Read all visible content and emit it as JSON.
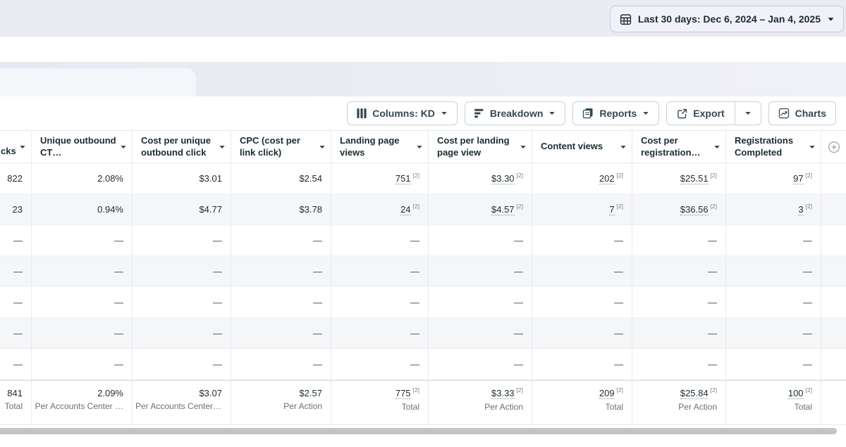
{
  "date_picker": {
    "label": "Last 30 days: Dec 6, 2024 – Jan 4, 2025"
  },
  "toolbar": {
    "columns": "Columns: KD",
    "breakdown": "Breakdown",
    "reports": "Reports",
    "export": "Export",
    "charts": "Charts"
  },
  "table": {
    "columns": [
      {
        "label": "cks",
        "partial": true
      },
      {
        "label": "Unique outbound CT…"
      },
      {
        "label": "Cost per unique outbound click"
      },
      {
        "label": "CPC (cost per link click)"
      },
      {
        "label": "Landing page views"
      },
      {
        "label": "Cost per landing page view"
      },
      {
        "label": "Content views"
      },
      {
        "label": "Cost per registration…"
      },
      {
        "label": "Registrations Completed"
      }
    ],
    "rows": [
      [
        {
          "v": "822"
        },
        {
          "v": "2.08%"
        },
        {
          "v": "$3.01"
        },
        {
          "v": "$2.54"
        },
        {
          "v": "751",
          "fn": "2"
        },
        {
          "v": "$3.30",
          "fn": "2"
        },
        {
          "v": "202",
          "fn": "2"
        },
        {
          "v": "$25.51",
          "fn": "2"
        },
        {
          "v": "97",
          "fn": "2"
        }
      ],
      [
        {
          "v": "23"
        },
        {
          "v": "0.94%"
        },
        {
          "v": "$4.77"
        },
        {
          "v": "$3.78"
        },
        {
          "v": "24",
          "fn": "2"
        },
        {
          "v": "$4.57",
          "fn": "2"
        },
        {
          "v": "7",
          "fn": "2"
        },
        {
          "v": "$36.56",
          "fn": "2"
        },
        {
          "v": "3",
          "fn": "2"
        }
      ],
      [
        {
          "v": "—"
        },
        {
          "v": "—"
        },
        {
          "v": "—"
        },
        {
          "v": "—"
        },
        {
          "v": "—"
        },
        {
          "v": "—"
        },
        {
          "v": "—"
        },
        {
          "v": "—"
        },
        {
          "v": "—"
        }
      ],
      [
        {
          "v": "—"
        },
        {
          "v": "—"
        },
        {
          "v": "—"
        },
        {
          "v": "—"
        },
        {
          "v": "—"
        },
        {
          "v": "—"
        },
        {
          "v": "—"
        },
        {
          "v": "—"
        },
        {
          "v": "—"
        }
      ],
      [
        {
          "v": "—"
        },
        {
          "v": "—"
        },
        {
          "v": "—"
        },
        {
          "v": "—"
        },
        {
          "v": "—"
        },
        {
          "v": "—"
        },
        {
          "v": "—"
        },
        {
          "v": "—"
        },
        {
          "v": "—"
        }
      ],
      [
        {
          "v": "—"
        },
        {
          "v": "—"
        },
        {
          "v": "—"
        },
        {
          "v": "—"
        },
        {
          "v": "—"
        },
        {
          "v": "—"
        },
        {
          "v": "—"
        },
        {
          "v": "—"
        },
        {
          "v": "—"
        }
      ],
      [
        {
          "v": "—"
        },
        {
          "v": "—"
        },
        {
          "v": "—"
        },
        {
          "v": "—"
        },
        {
          "v": "—"
        },
        {
          "v": "—"
        },
        {
          "v": "—"
        },
        {
          "v": "—"
        },
        {
          "v": "—"
        }
      ]
    ],
    "totals": [
      {
        "v": "841",
        "label": "Total"
      },
      {
        "v": "2.09%",
        "label": "Per Accounts Center …"
      },
      {
        "v": "$3.07",
        "label": "Per Accounts Center …"
      },
      {
        "v": "$2.57",
        "label": "Per Action"
      },
      {
        "v": "775",
        "fn": "2",
        "label": "Total"
      },
      {
        "v": "$3.33",
        "fn": "2",
        "label": "Per Action"
      },
      {
        "v": "209",
        "fn": "2",
        "label": "Total"
      },
      {
        "v": "$25.84",
        "fn": "2",
        "label": "Per Action"
      },
      {
        "v": "100",
        "fn": "2",
        "label": "Total"
      }
    ]
  },
  "colors": {
    "top_band": "#eaebf3",
    "tab_pane": "#f5f6fa",
    "header_text": "#1c2b33",
    "button_text": "#344854",
    "secondary_text": "#6a6f75",
    "grid_border": "#e8eaee",
    "row_alt": "#f5f6f8",
    "scrollbar_thumb": "#c2c4c8"
  }
}
